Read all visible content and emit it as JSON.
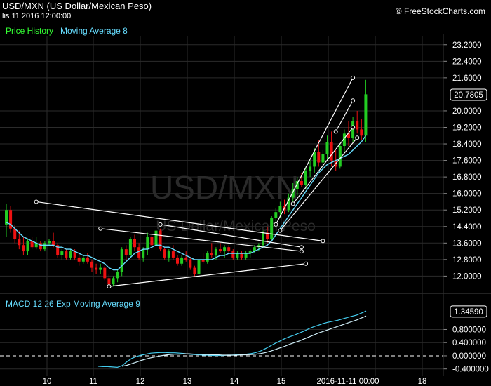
{
  "header": {
    "title": "USD/MXN (US Dollar/Mexican Peso)",
    "date": "lis 11 2016 12:00:00",
    "brand": "© FreeStockCharts.com"
  },
  "legend": {
    "price": "Price History",
    "ma": "Moving Average 8"
  },
  "macd_legend": "MACD 12 26  Exp Moving Average 9",
  "watermark": {
    "line1": "USD/MXN",
    "line2": "US Dollar/Mexican Peso"
  },
  "colors": {
    "up": "#22cc22",
    "down": "#ee1111",
    "ma": "#66ddff",
    "macd": "#44ccee",
    "signal": "#cfeef8",
    "trendline": "#ffffff"
  },
  "chart_data": [
    {
      "type": "candlestick",
      "title": "USD/MXN (US Dollar/Mexican Peso)",
      "x_tick_labels": [
        "10",
        "11",
        "12",
        "13",
        "14",
        "15",
        "2016-11-11 00:00",
        "18"
      ],
      "y_ticks": [
        "12.0000",
        "12.8000",
        "13.6000",
        "14.4000",
        "15.2000",
        "16.0000",
        "16.8000",
        "17.6000",
        "18.4000",
        "19.2000",
        "20.0000",
        "20.7805",
        "21.6000",
        "22.4000",
        "23.2000"
      ],
      "ylim": [
        11.3,
        23.6
      ],
      "current_value": "20.7805",
      "series": [
        {
          "name": "Price History",
          "ohlc": [
            [
              14.5,
              15.5,
              13.9,
              15.2
            ],
            [
              15.2,
              15.4,
              14.1,
              14.3
            ],
            [
              14.3,
              14.5,
              13.6,
              13.8
            ],
            [
              13.8,
              14.2,
              13.3,
              13.5
            ],
            [
              13.5,
              13.9,
              13.0,
              13.2
            ],
            [
              13.2,
              13.8,
              13.0,
              13.7
            ],
            [
              13.7,
              13.9,
              13.3,
              13.4
            ],
            [
              13.4,
              13.9,
              13.3,
              13.6
            ],
            [
              13.6,
              13.7,
              13.2,
              13.3
            ],
            [
              13.3,
              13.7,
              13.2,
              13.6
            ],
            [
              13.6,
              13.8,
              13.5,
              13.7
            ],
            [
              13.7,
              14.1,
              13.4,
              13.5
            ],
            [
              13.5,
              13.6,
              12.9,
              13.0
            ],
            [
              13.0,
              13.3,
              12.8,
              13.2
            ],
            [
              13.2,
              13.3,
              12.8,
              12.9
            ],
            [
              12.9,
              13.3,
              12.8,
              13.2
            ],
            [
              13.2,
              13.3,
              12.8,
              12.9
            ],
            [
              12.9,
              13.1,
              12.5,
              12.7
            ],
            [
              12.7,
              13.0,
              12.6,
              12.9
            ],
            [
              12.9,
              13.1,
              12.6,
              12.7
            ],
            [
              12.7,
              12.8,
              12.2,
              12.4
            ],
            [
              12.4,
              12.6,
              12.1,
              12.3
            ],
            [
              12.3,
              12.6,
              12.1,
              12.4
            ],
            [
              12.4,
              12.5,
              11.8,
              11.9
            ],
            [
              11.9,
              12.1,
              11.5,
              11.6
            ],
            [
              11.6,
              12.0,
              11.5,
              11.9
            ],
            [
              11.9,
              12.3,
              11.7,
              12.2
            ],
            [
              12.2,
              13.4,
              12.0,
              13.3
            ],
            [
              13.3,
              13.5,
              12.8,
              13.0
            ],
            [
              13.0,
              13.9,
              12.9,
              13.8
            ],
            [
              13.8,
              14.0,
              13.2,
              13.4
            ],
            [
              13.4,
              13.6,
              12.8,
              12.9
            ],
            [
              12.9,
              13.4,
              12.7,
              13.3
            ],
            [
              13.3,
              14.1,
              13.0,
              13.9
            ],
            [
              13.9,
              14.0,
              13.4,
              13.5
            ],
            [
              13.5,
              14.5,
              13.1,
              14.2
            ],
            [
              14.2,
              14.3,
              13.2,
              13.3
            ],
            [
              13.3,
              13.4,
              12.8,
              12.9
            ],
            [
              12.9,
              13.3,
              12.7,
              13.2
            ],
            [
              13.2,
              13.5,
              12.8,
              12.9
            ],
            [
              12.9,
              13.0,
              12.5,
              12.6
            ],
            [
              12.6,
              13.0,
              12.5,
              12.9
            ],
            [
              12.9,
              13.2,
              12.7,
              12.8
            ],
            [
              12.8,
              12.9,
              12.3,
              12.4
            ],
            [
              12.4,
              12.5,
              12.0,
              12.1
            ],
            [
              12.1,
              12.9,
              12.0,
              12.8
            ],
            [
              12.8,
              13.1,
              12.6,
              12.7
            ],
            [
              12.7,
              13.2,
              12.6,
              13.1
            ],
            [
              13.1,
              13.6,
              12.9,
              13.0
            ],
            [
              13.0,
              13.4,
              12.8,
              13.3
            ],
            [
              13.3,
              13.6,
              13.1,
              13.2
            ],
            [
              13.2,
              13.5,
              12.9,
              13.4
            ],
            [
              13.4,
              13.5,
              13.1,
              13.2
            ],
            [
              13.2,
              13.3,
              12.8,
              12.9
            ],
            [
              12.9,
              13.2,
              12.8,
              13.1
            ],
            [
              13.1,
              13.2,
              12.8,
              12.9
            ],
            [
              12.9,
              13.2,
              12.8,
              13.1
            ],
            [
              13.1,
              13.3,
              12.9,
              13.2
            ],
            [
              13.2,
              13.5,
              13.1,
              13.4
            ],
            [
              13.4,
              13.6,
              13.2,
              13.5
            ],
            [
              13.5,
              14.2,
              13.4,
              14.1
            ],
            [
              14.1,
              14.4,
              13.6,
              13.8
            ],
            [
              13.8,
              14.9,
              13.7,
              14.8
            ],
            [
              14.8,
              15.3,
              14.4,
              15.1
            ],
            [
              15.1,
              15.6,
              14.8,
              15.4
            ],
            [
              15.4,
              15.7,
              15.0,
              15.2
            ],
            [
              15.2,
              16.0,
              15.1,
              15.8
            ],
            [
              15.8,
              16.5,
              15.6,
              16.2
            ],
            [
              16.2,
              16.8,
              15.9,
              16.6
            ],
            [
              16.6,
              17.0,
              16.3,
              16.4
            ],
            [
              16.4,
              17.3,
              16.2,
              17.1
            ],
            [
              17.1,
              17.6,
              16.8,
              17.3
            ],
            [
              17.3,
              18.2,
              17.0,
              18.0
            ],
            [
              18.0,
              18.6,
              17.3,
              17.5
            ],
            [
              17.5,
              18.1,
              17.2,
              17.9
            ],
            [
              17.9,
              18.8,
              17.6,
              18.5
            ],
            [
              18.5,
              19.0,
              17.3,
              17.6
            ],
            [
              17.6,
              18.1,
              17.1,
              17.3
            ],
            [
              17.3,
              18.4,
              17.2,
              18.3
            ],
            [
              18.3,
              19.1,
              18.0,
              18.9
            ],
            [
              18.9,
              19.5,
              18.3,
              18.7
            ],
            [
              18.7,
              19.7,
              18.5,
              19.5
            ],
            [
              19.5,
              20.0,
              18.9,
              19.1
            ],
            [
              19.1,
              19.6,
              18.6,
              18.8
            ],
            [
              18.8,
              21.5,
              18.5,
              20.8
            ]
          ]
        },
        {
          "name": "Moving Average 8",
          "values": [
            14.6,
            14.5,
            14.3,
            14.1,
            13.9,
            13.8,
            13.7,
            13.6,
            13.5,
            13.5,
            13.5,
            13.5,
            13.4,
            13.4,
            13.3,
            13.3,
            13.2,
            13.1,
            13.0,
            13.0,
            12.9,
            12.8,
            12.7,
            12.6,
            12.4,
            12.3,
            12.3,
            12.5,
            12.7,
            12.9,
            13.1,
            13.2,
            13.3,
            13.3,
            13.4,
            13.5,
            13.5,
            13.4,
            13.4,
            13.3,
            13.2,
            13.1,
            13.0,
            12.9,
            12.8,
            12.8,
            12.8,
            12.8,
            12.8,
            12.9,
            13.0,
            13.0,
            13.1,
            13.1,
            13.1,
            13.1,
            13.1,
            13.1,
            13.2,
            13.3,
            13.4,
            13.5,
            13.7,
            14.0,
            14.3,
            14.6,
            14.9,
            15.2,
            15.5,
            15.8,
            16.1,
            16.4,
            16.7,
            17.0,
            17.2,
            17.4,
            17.5,
            17.6,
            17.7,
            17.8,
            17.9,
            18.1,
            18.3,
            18.5,
            18.8
          ]
        }
      ]
    },
    {
      "type": "line",
      "title": "MACD 12 26  Exp Moving Average 9",
      "y_ticks": [
        "-0.400000",
        "0.000000",
        "0.400000",
        "0.800000",
        "1.34590"
      ],
      "ylim": [
        -0.62,
        1.6
      ],
      "current_value": "1.34590",
      "series": [
        {
          "name": "MACD 12 26",
          "values": [
            -0.32,
            -0.33,
            -0.33,
            -0.34,
            -0.35,
            -0.3,
            -0.18,
            -0.08,
            -0.02,
            0.02,
            0.05,
            0.08,
            0.09,
            0.1,
            0.1,
            0.09,
            0.09,
            0.08,
            0.07,
            0.05,
            0.04,
            0.03,
            0.02,
            0.02,
            0.01,
            0.01,
            0.01,
            0.02,
            0.02,
            0.03,
            0.04,
            0.05,
            0.07,
            0.1,
            0.15,
            0.22,
            0.3,
            0.38,
            0.45,
            0.52,
            0.58,
            0.63,
            0.69,
            0.75,
            0.82,
            0.88,
            0.93,
            0.98,
            1.02,
            1.05,
            1.08,
            1.12,
            1.16,
            1.2,
            1.24,
            1.3,
            1.36
          ]
        },
        {
          "name": "Exp Moving Average 9",
          "values": [
            null,
            null,
            null,
            null,
            null,
            -0.32,
            -0.29,
            -0.24,
            -0.19,
            -0.14,
            -0.1,
            -0.06,
            -0.03,
            0.0,
            0.02,
            0.04,
            0.05,
            0.05,
            0.06,
            0.06,
            0.05,
            0.05,
            0.04,
            0.04,
            0.03,
            0.03,
            0.02,
            0.02,
            0.02,
            0.02,
            0.03,
            0.03,
            0.04,
            0.05,
            0.07,
            0.1,
            0.14,
            0.19,
            0.24,
            0.29,
            0.35,
            0.4,
            0.45,
            0.51,
            0.57,
            0.63,
            0.69,
            0.74,
            0.79,
            0.84,
            0.89,
            0.94,
            0.99,
            1.04,
            1.09,
            1.15,
            1.21
          ]
        }
      ]
    }
  ],
  "trendlines": [
    [
      [
        7,
        15.6
      ],
      [
        74,
        13.7
      ]
    ],
    [
      [
        22,
        14.3
      ],
      [
        69,
        13.2
      ]
    ],
    [
      [
        24,
        11.5
      ],
      [
        70,
        12.6
      ]
    ],
    [
      [
        36,
        14.5
      ],
      [
        69,
        13.4
      ]
    ],
    [
      [
        63,
        14.5
      ],
      [
        81,
        21.6
      ]
    ],
    [
      [
        77,
        19.0
      ],
      [
        81,
        20.5
      ]
    ],
    [
      [
        64,
        14.2
      ],
      [
        82,
        18.7
      ]
    ],
    [
      [
        67,
        15.5
      ],
      [
        81,
        19.2
      ]
    ]
  ]
}
